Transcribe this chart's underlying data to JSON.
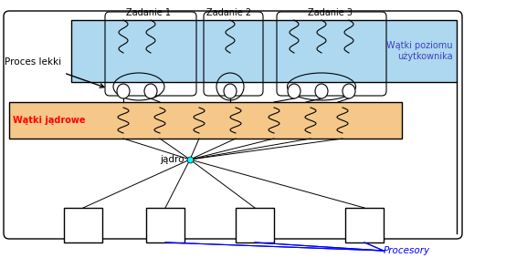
{
  "bg_color": "#ffffff",
  "user_thread_band_color": "#add8f0",
  "kernel_thread_band_color": "#f5c88a",
  "label_watki_poziomu": "Wątki poziomu\nużytkownika",
  "label_watki_jadrowe": "Wątki jądrowe",
  "label_proces_lekki": "Proces lekki",
  "label_jadro": "jądro",
  "label_procesory": "Procesory",
  "label_zadanie1": "Zadanie 1",
  "label_zadanie2": "Zadanie 2",
  "label_zadanie3": "Zadanie 3"
}
